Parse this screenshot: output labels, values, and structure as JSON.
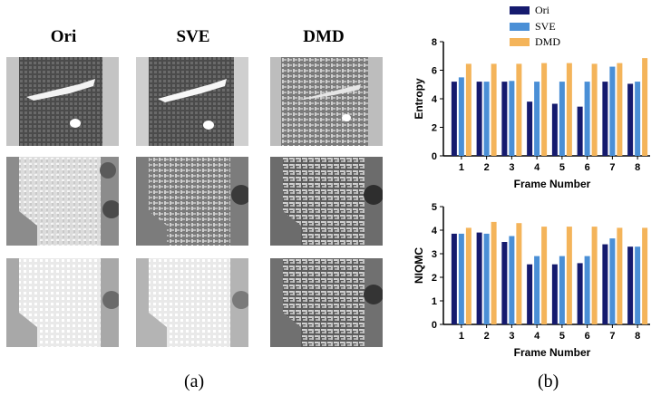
{
  "panel_a": {
    "columns": [
      "Ori",
      "SVE",
      "DMD"
    ],
    "caption": "(a)"
  },
  "panel_b": {
    "caption": "(b)"
  },
  "legend": [
    {
      "name": "Ori",
      "color": "#151a6e"
    },
    {
      "name": "SVE",
      "color": "#4a8fd6"
    },
    {
      "name": "DMD",
      "color": "#f4b45a"
    }
  ],
  "chart_data": [
    {
      "type": "bar",
      "ylabel": "Entropy",
      "xlabel": "Frame Number",
      "categories": [
        "1",
        "2",
        "3",
        "4",
        "5",
        "6",
        "7",
        "8"
      ],
      "ylim": [
        0,
        8
      ],
      "yticks": [
        "0",
        "2",
        "4",
        "6",
        "8"
      ],
      "series": [
        {
          "name": "Ori",
          "values": [
            5.2,
            5.2,
            5.2,
            3.8,
            3.65,
            3.45,
            5.2,
            5.05
          ]
        },
        {
          "name": "SVE",
          "values": [
            5.5,
            5.2,
            5.25,
            5.2,
            5.2,
            5.2,
            6.25,
            5.2
          ]
        },
        {
          "name": "DMD",
          "values": [
            6.45,
            6.45,
            6.45,
            6.5,
            6.5,
            6.45,
            6.5,
            6.85
          ]
        }
      ]
    },
    {
      "type": "bar",
      "ylabel": "NIQMC",
      "xlabel": "Frame Number",
      "categories": [
        "1",
        "2",
        "3",
        "4",
        "5",
        "6",
        "7",
        "8"
      ],
      "ylim": [
        0,
        5
      ],
      "yticks": [
        "0",
        "1",
        "2",
        "3",
        "4",
        "5"
      ],
      "series": [
        {
          "name": "Ori",
          "values": [
            3.85,
            3.9,
            3.5,
            2.55,
            2.55,
            2.6,
            3.4,
            3.3
          ]
        },
        {
          "name": "SVE",
          "values": [
            3.85,
            3.85,
            3.75,
            2.9,
            2.9,
            2.9,
            3.65,
            3.3
          ]
        },
        {
          "name": "DMD",
          "values": [
            4.1,
            4.35,
            4.3,
            4.15,
            4.15,
            4.15,
            4.1,
            4.1
          ]
        }
      ]
    }
  ]
}
